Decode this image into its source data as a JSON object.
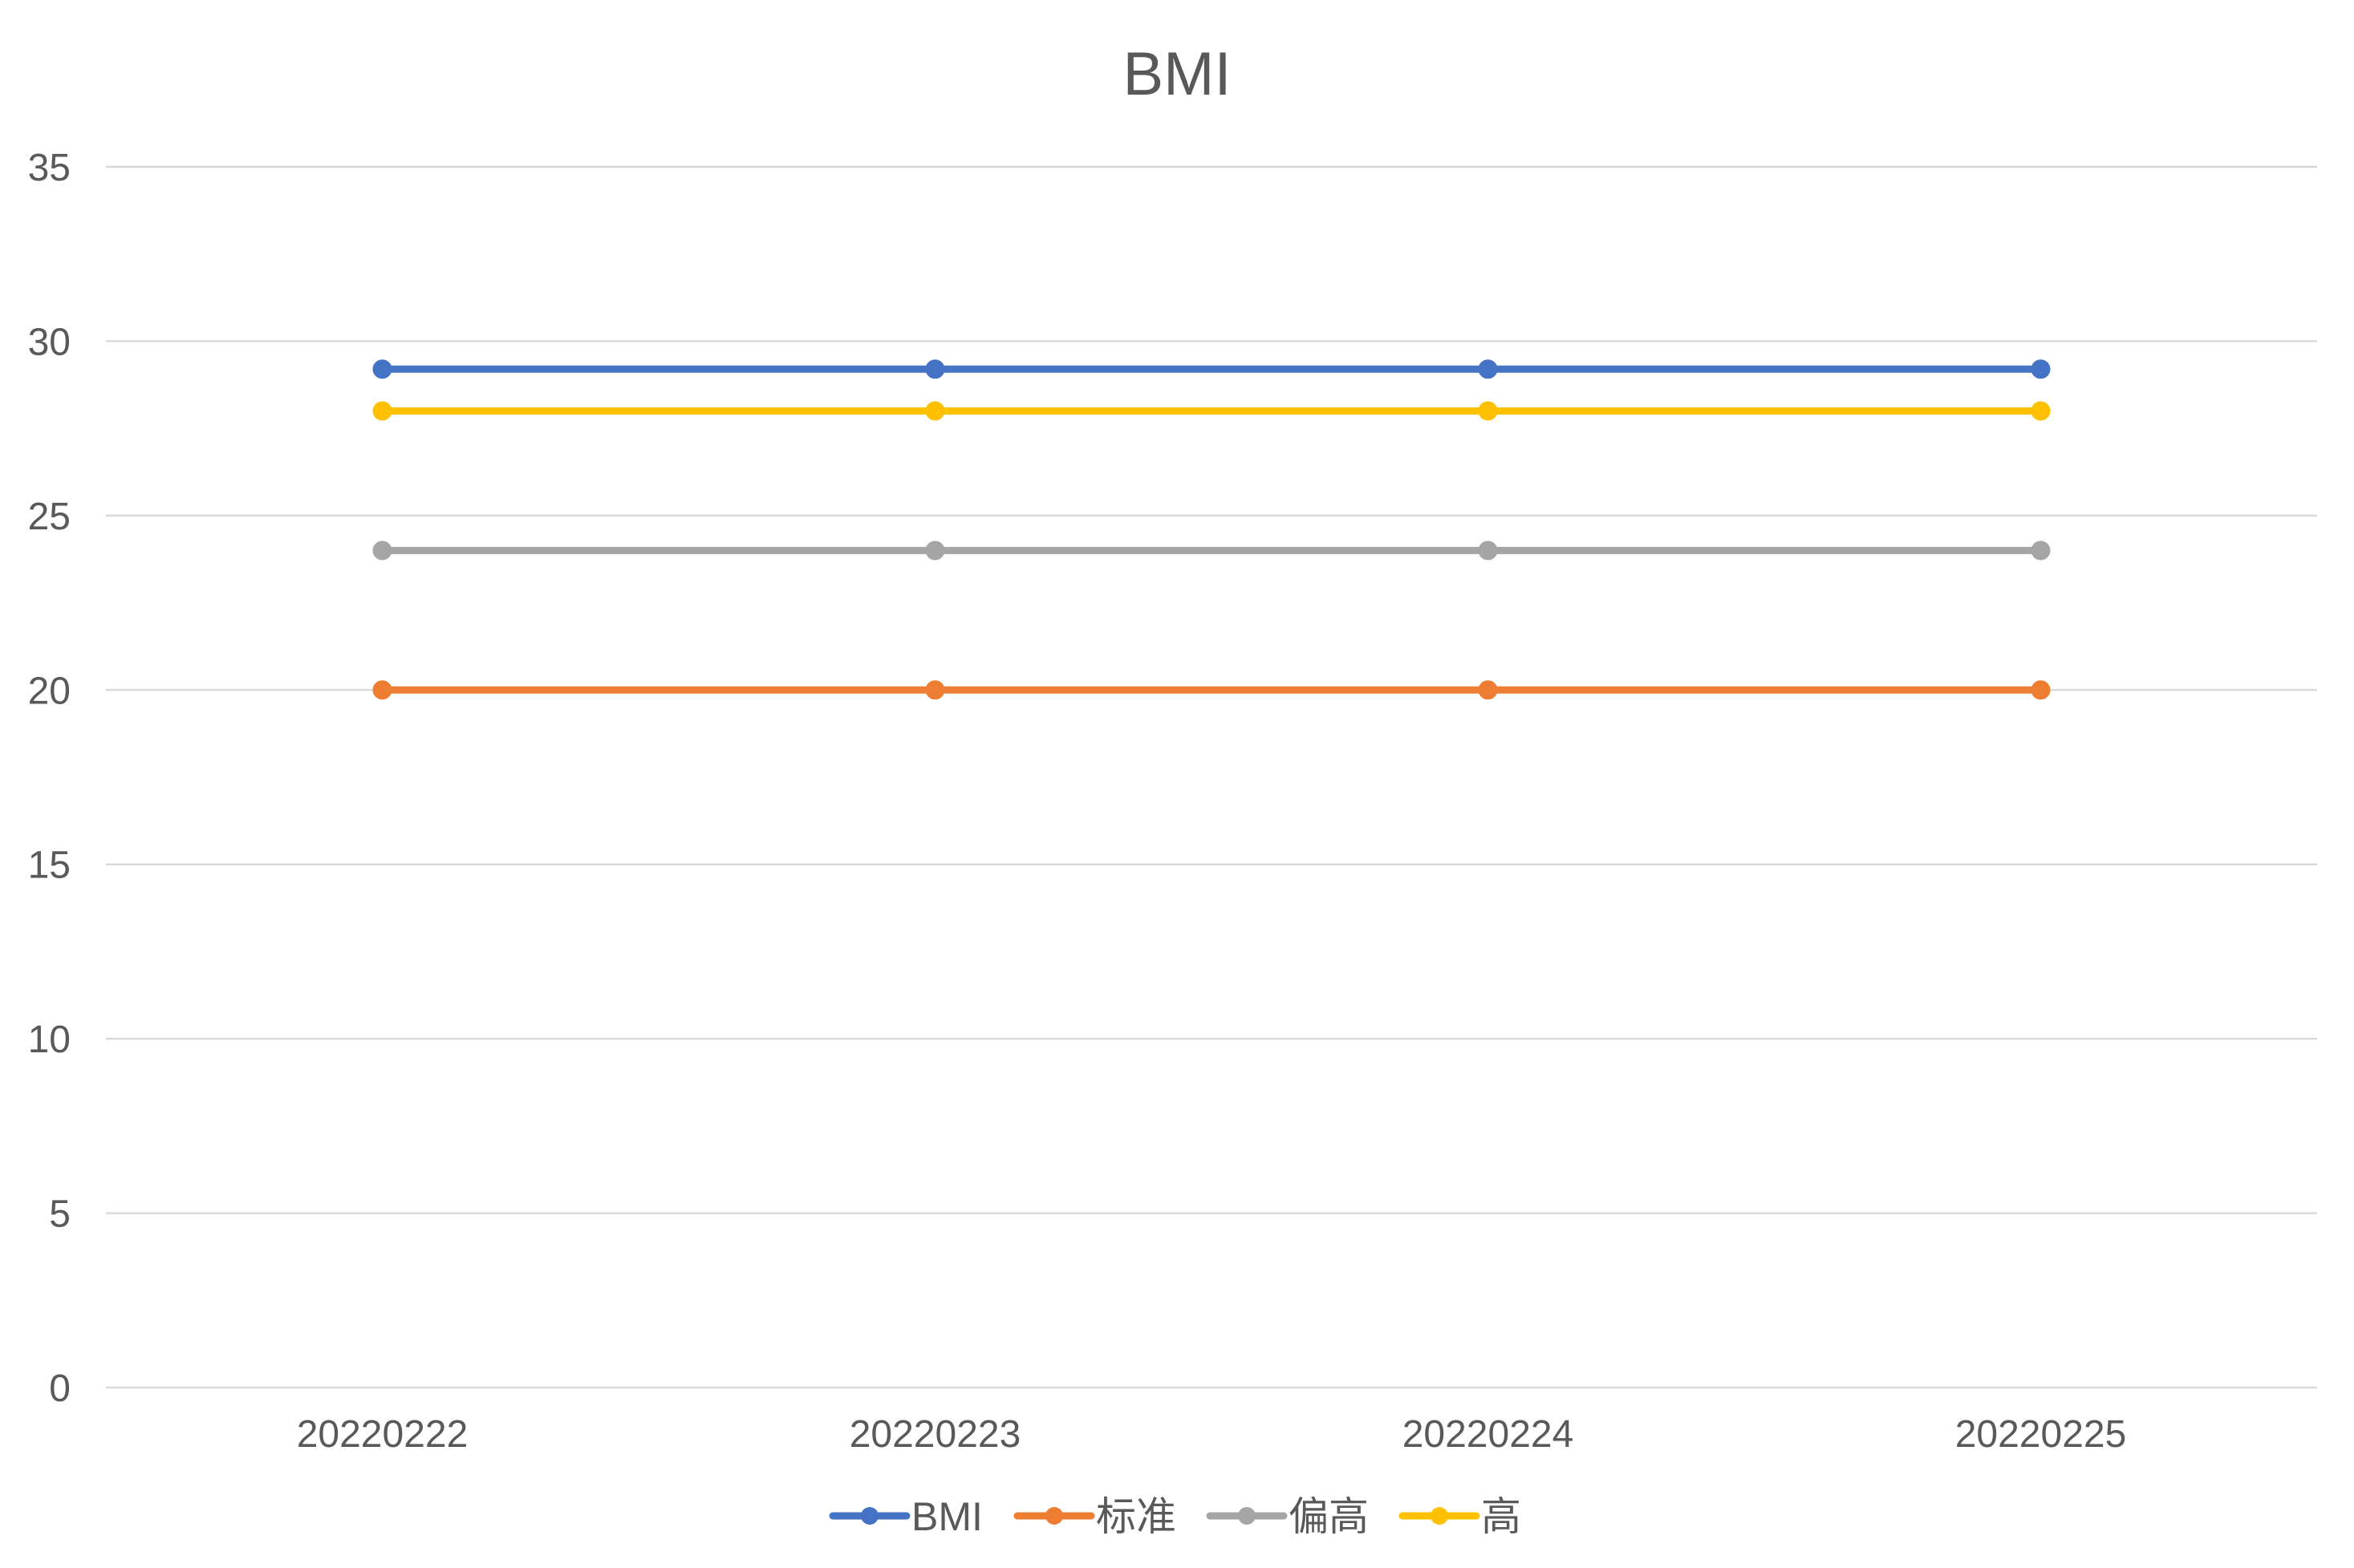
{
  "chart_data": {
    "type": "line",
    "title": "BMI",
    "xlabel": "",
    "ylabel": "",
    "categories": [
      "20220222",
      "20220223",
      "20220224",
      "20220225"
    ],
    "ylim": [
      0,
      35
    ],
    "yticks": [
      0,
      5,
      10,
      15,
      20,
      25,
      30,
      35
    ],
    "grid": true,
    "legend_position": "bottom",
    "marker": "circle",
    "series": [
      {
        "name": "BMI",
        "color": "#4472C4",
        "values": [
          29.2,
          29.2,
          29.2,
          29.2
        ]
      },
      {
        "name": "标准",
        "color": "#ED7D31",
        "values": [
          20,
          20,
          20,
          20
        ]
      },
      {
        "name": "偏高",
        "color": "#A5A5A5",
        "values": [
          24,
          24,
          24,
          24
        ]
      },
      {
        "name": "高",
        "color": "#FFC000",
        "values": [
          28,
          28,
          28,
          28
        ]
      }
    ]
  }
}
